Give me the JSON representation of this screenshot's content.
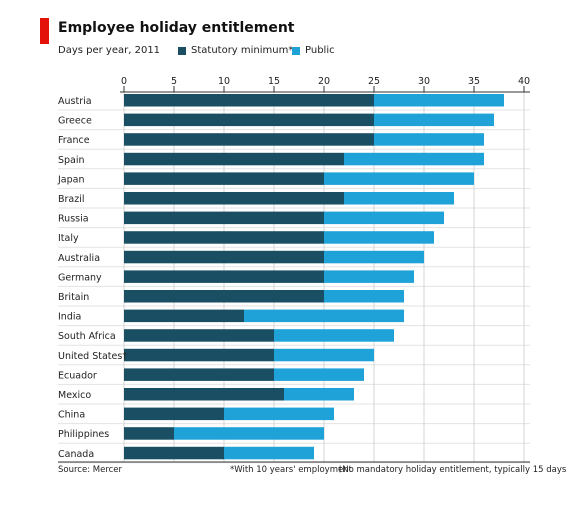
{
  "chart_data": {
    "type": "bar",
    "orientation": "horizontal",
    "stacked": true,
    "title": "Employee holiday entitlement",
    "subtitle": "Days per year, 2011",
    "categories": [
      "Austria",
      "Greece",
      "France",
      "Spain",
      "Japan",
      "Brazil",
      "Russia",
      "Italy",
      "Australia",
      "Germany",
      "Britain",
      "India",
      "South Africa",
      "United States†",
      "Ecuador",
      "Mexico",
      "China",
      "Philippines",
      "Canada"
    ],
    "series": [
      {
        "name": "Statutory minimum*",
        "color": "#1a4e63",
        "values": [
          25,
          25,
          25,
          22,
          20,
          22,
          20,
          20,
          20,
          20,
          20,
          12,
          15,
          15,
          15,
          16,
          10,
          5,
          10
        ]
      },
      {
        "name": "Public",
        "color": "#1fa2d8",
        "values": [
          13,
          12,
          11,
          14,
          15,
          11,
          12,
          11,
          10,
          9,
          8,
          16,
          12,
          10,
          9,
          7,
          11,
          15,
          9
        ]
      }
    ],
    "xticks": [
      0,
      5,
      10,
      15,
      20,
      25,
      30,
      35,
      40
    ],
    "xlim": [
      0,
      40
    ],
    "grid": true,
    "legend_position": "top"
  },
  "footer": {
    "source": "Source: Mercer",
    "note1": "*With 10 years' employment",
    "note2": "†No mandatory holiday entitlement, typically 15 days"
  }
}
